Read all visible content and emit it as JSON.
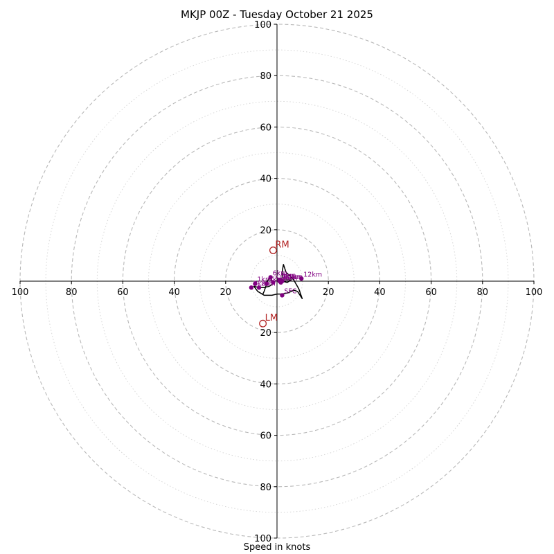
{
  "chart_data": {
    "type": "hodograph",
    "title": "MKJP 00Z - Tuesday October 21 2025",
    "xlabel": "Speed in knots",
    "max_speed": 100,
    "ring_major": [
      20,
      40,
      60,
      80,
      100
    ],
    "ring_minor": [
      10,
      30,
      50,
      70,
      90
    ],
    "tick_labels": {
      "left": [
        "100",
        "80",
        "60",
        "40",
        "20"
      ],
      "right": [
        "20",
        "40",
        "60",
        "80",
        "100"
      ],
      "top": [
        "100",
        "80",
        "60",
        "40",
        "20"
      ],
      "bottom": [
        "20",
        "40",
        "60",
        "80",
        "100"
      ]
    },
    "grid": true,
    "colors": {
      "major_ring": "#b8b8b8",
      "minor_ring": "#d6d6d6",
      "hodograph": "#000000",
      "markers": "#800080",
      "storm_motion": "#b22222"
    },
    "hodograph_line": [
      [
        -5.5,
        -5.0
      ],
      [
        -5.0,
        -4.0
      ],
      [
        -3.5,
        0.5
      ],
      [
        -2.5,
        1.5
      ],
      [
        -1.5,
        -1.0
      ],
      [
        -3.0,
        -2.0
      ],
      [
        -5.0,
        -2.5
      ],
      [
        -7.0,
        -2.5
      ],
      [
        -9.0,
        -2.0
      ],
      [
        -7.5,
        -4.0
      ],
      [
        -5.0,
        -5.5
      ],
      [
        -2.0,
        -5.5
      ],
      [
        0.0,
        -5.0
      ],
      [
        2.0,
        -5.0
      ],
      [
        4.5,
        -4.5
      ],
      [
        6.5,
        -3.5
      ],
      [
        8.0,
        -4.0
      ],
      [
        9.8,
        -6.8
      ],
      [
        8.5,
        -3.0
      ],
      [
        6.5,
        0.5
      ],
      [
        3.5,
        3.5
      ],
      [
        2.5,
        6.5
      ],
      [
        2.0,
        3.5
      ],
      [
        2.0,
        0.0
      ],
      [
        4.0,
        -0.5
      ],
      [
        5.5,
        0.5
      ],
      [
        3.5,
        0.5
      ],
      [
        2.0,
        0.5
      ]
    ],
    "height_markers": [
      {
        "label": "SFC",
        "u": 2.0,
        "v": -5.5
      },
      {
        "label": "1km",
        "u": -8.5,
        "v": -1.0
      },
      {
        "label": "2km",
        "u": -7.0,
        "v": -2.5
      },
      {
        "label": "3km",
        "u": -10.0,
        "v": -2.5
      },
      {
        "label": "4km",
        "u": -4.0,
        "v": -1.0
      },
      {
        "label": "5km",
        "u": -1.5,
        "v": -0.5
      },
      {
        "label": "6km",
        "u": -2.5,
        "v": 1.5
      },
      {
        "label": "7km",
        "u": 1.0,
        "v": 0.0
      },
      {
        "label": "8km",
        "u": 1.5,
        "v": -0.5
      },
      {
        "label": "9km",
        "u": 1.0,
        "v": 0.5
      },
      {
        "label": "10km",
        "u": 1.5,
        "v": 0.0
      },
      {
        "label": "11km",
        "u": 2.0,
        "v": 0.0
      },
      {
        "label": "12km",
        "u": 9.5,
        "v": 1.0
      }
    ],
    "storm_motion": [
      {
        "label": "RM",
        "u": -1.5,
        "v": 12.0
      },
      {
        "label": "LM",
        "u": -5.5,
        "v": -16.5
      }
    ]
  }
}
